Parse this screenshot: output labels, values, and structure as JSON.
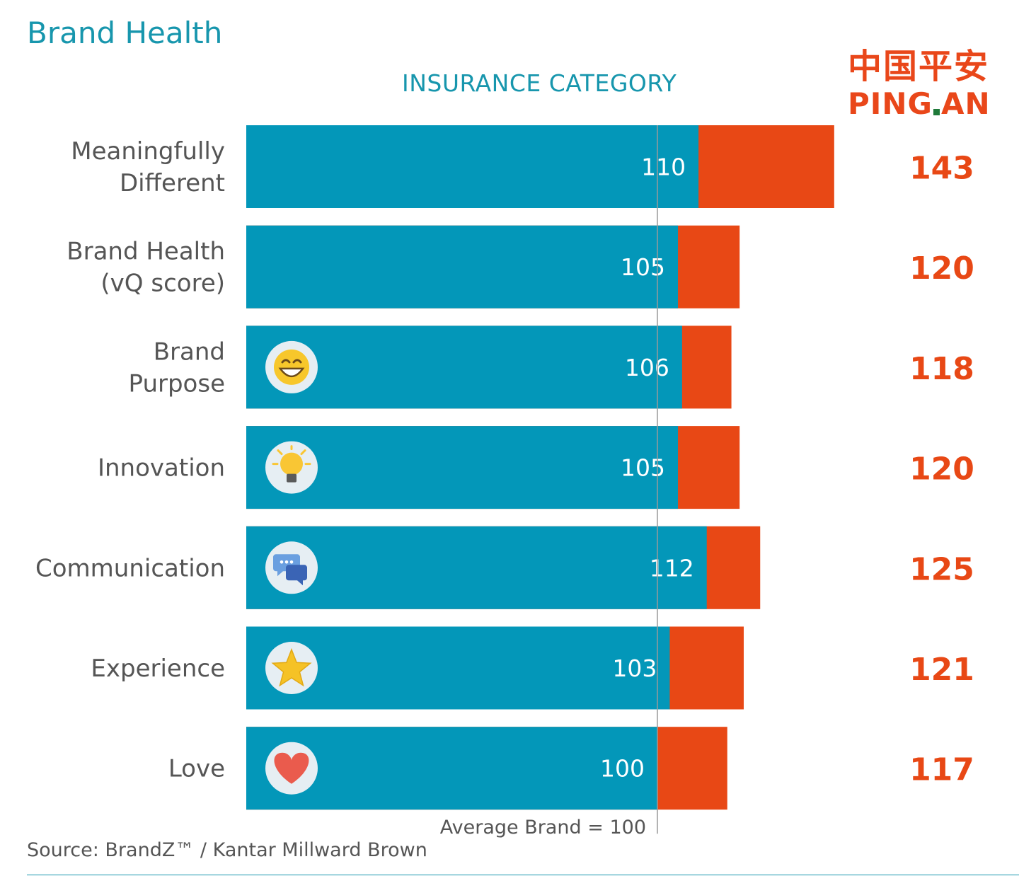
{
  "title": "Brand Health",
  "subtitle": "INSURANCE CATEGORY",
  "logo": {
    "chinese": "中国平安",
    "english_part1": "PING",
    "english_part2": "AN"
  },
  "source": "Source: BrandZ™ / Kantar Millward Brown",
  "colors": {
    "category": "#0397b9",
    "brand": "#e84815",
    "accent": "#1796ad",
    "label": "#555555"
  },
  "chart_data": {
    "type": "bar",
    "orientation": "horizontal",
    "title": "Brand Health",
    "subtitle": "INSURANCE CATEGORY",
    "categories": [
      [
        "Meaningfully",
        "Different"
      ],
      [
        "Brand Health",
        "(vQ score)"
      ],
      [
        "Brand",
        "Purpose"
      ],
      [
        "Innovation"
      ],
      [
        "Communication"
      ],
      [
        "Experience"
      ],
      [
        "Love"
      ]
    ],
    "icons": [
      null,
      null,
      "grin-face-icon",
      "lightbulb-icon",
      "chat-bubbles-icon",
      "star-icon",
      "heart-icon"
    ],
    "series": [
      {
        "name": "Insurance Category",
        "values": [
          110,
          105,
          106,
          105,
          112,
          103,
          100
        ]
      },
      {
        "name": "Ping An",
        "values": [
          143,
          120,
          118,
          120,
          125,
          121,
          117
        ]
      }
    ],
    "reference_line": {
      "value": 100,
      "label": "Average Brand = 100"
    },
    "xlim": [
      0,
      143
    ]
  }
}
